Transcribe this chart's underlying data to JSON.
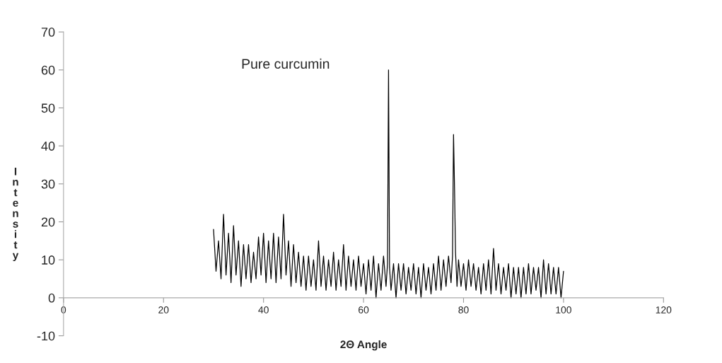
{
  "chart_data": {
    "type": "line",
    "title": "Pure curcumin",
    "xlabel": "2Θ Angle",
    "ylabel": "Intensity",
    "xlim": [
      0,
      120
    ],
    "xticks": [
      0,
      20,
      40,
      60,
      80,
      100,
      120
    ],
    "ylim": [
      -10,
      70
    ],
    "yticks": [
      -10,
      0,
      10,
      20,
      30,
      40,
      50,
      60,
      70
    ],
    "grid": false,
    "legend": false,
    "series": [
      {
        "color": "#000000",
        "x": [
          30,
          30.5,
          31,
          31.5,
          32,
          32.5,
          33,
          33.5,
          34,
          34.5,
          35,
          35.5,
          36,
          36.5,
          37,
          37.5,
          38,
          38.5,
          39,
          39.5,
          40,
          40.5,
          41,
          41.5,
          42,
          42.5,
          43,
          43.5,
          44,
          44.5,
          45,
          45.5,
          46,
          46.5,
          47,
          47.5,
          48,
          48.5,
          49,
          49.5,
          50,
          50.5,
          51,
          51.5,
          52,
          52.5,
          53,
          53.5,
          54,
          54.5,
          55,
          55.5,
          56,
          56.5,
          57,
          57.5,
          58,
          58.5,
          59,
          59.5,
          60,
          60.5,
          61,
          61.5,
          62,
          62.5,
          63,
          63.5,
          64,
          64.5,
          64.8,
          65,
          65.2,
          65.5,
          66,
          66.5,
          67,
          67.5,
          68,
          68.5,
          69,
          69.5,
          70,
          70.5,
          71,
          71.5,
          72,
          72.5,
          73,
          73.5,
          74,
          74.5,
          75,
          75.5,
          76,
          76.5,
          77,
          77.5,
          77.8,
          78,
          78.2,
          78.4,
          78.7,
          79,
          79.5,
          80,
          80.5,
          81,
          81.5,
          82,
          82.5,
          83,
          83.5,
          84,
          84.5,
          85,
          85.5,
          86,
          86.5,
          87,
          87.5,
          88,
          88.5,
          89,
          89.5,
          90,
          90.5,
          91,
          91.5,
          92,
          92.5,
          93,
          93.5,
          94,
          94.5,
          95,
          95.5,
          96,
          96.5,
          97,
          97.5,
          98,
          98.5,
          99,
          99.5,
          100
        ],
        "values": [
          18,
          7,
          15,
          5,
          22,
          6,
          17,
          4,
          19,
          6,
          15,
          3,
          14,
          5,
          14,
          4,
          12,
          5,
          16,
          6,
          17,
          4,
          15,
          5,
          17,
          4,
          16,
          5,
          22,
          6,
          15,
          3,
          14,
          4,
          12,
          3,
          11,
          2,
          11,
          3,
          10,
          2,
          15,
          3,
          11,
          2,
          10,
          3,
          12,
          2,
          10,
          3,
          14,
          2,
          11,
          3,
          10,
          2,
          11,
          3,
          9,
          1,
          10,
          2,
          11,
          0,
          9,
          2,
          11,
          3,
          9,
          60,
          8,
          2,
          9,
          0,
          9,
          2,
          9,
          1,
          8,
          2,
          9,
          1,
          8,
          0,
          9,
          2,
          8,
          1,
          9,
          2,
          11,
          2,
          10,
          3,
          11,
          4,
          11,
          43,
          29,
          12,
          3,
          10,
          3,
          9,
          2,
          10,
          3,
          9,
          2,
          8,
          1,
          9,
          2,
          10,
          1,
          13,
          2,
          9,
          1,
          8,
          2,
          9,
          0,
          8,
          1,
          8,
          0,
          8,
          1,
          9,
          1,
          8,
          2,
          8,
          0,
          10,
          1,
          9,
          1,
          8,
          1,
          8,
          0,
          7
        ]
      }
    ]
  }
}
